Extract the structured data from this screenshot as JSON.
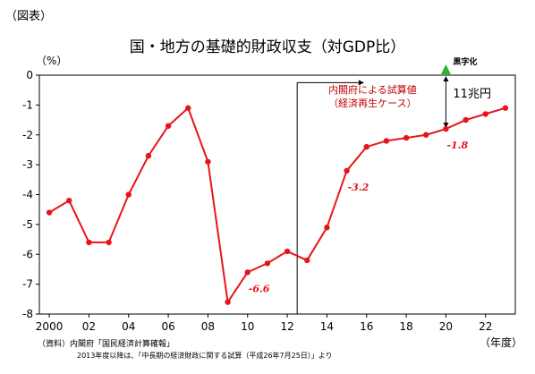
{
  "figure_tag": "（図表）",
  "source_line1": "（資料）内閣府「国民経済計算確報」",
  "source_line2": "2013年度以降は、「中長期の経済財政に関する試算（平成26年7月25日）」より",
  "chart_data": {
    "type": "line",
    "title": "国・地方の基礎的財政収支（対GDP比）",
    "ylabel": "（%）",
    "xlabel": "（年度）",
    "ylim": [
      -8,
      0
    ],
    "yticks": [
      0,
      -1,
      -2,
      -3,
      -4,
      -5,
      -6,
      -7,
      -8
    ],
    "xlim": [
      1999.5,
      2023.5
    ],
    "xticks": [
      {
        "x": 2000,
        "label": "2000"
      },
      {
        "x": 2002,
        "label": "02"
      },
      {
        "x": 2004,
        "label": "04"
      },
      {
        "x": 2006,
        "label": "06"
      },
      {
        "x": 2008,
        "label": "08"
      },
      {
        "x": 2010,
        "label": "10"
      },
      {
        "x": 2012,
        "label": "12"
      },
      {
        "x": 2014,
        "label": "14"
      },
      {
        "x": 2016,
        "label": "16"
      },
      {
        "x": 2018,
        "label": "18"
      },
      {
        "x": 2020,
        "label": "20"
      },
      {
        "x": 2022,
        "label": "22"
      }
    ],
    "grid": false,
    "color": "#e8141b",
    "series": [
      {
        "x": [
          2000,
          2001,
          2002,
          2003,
          2004,
          2005,
          2006,
          2007,
          2008,
          2009,
          2010,
          2011,
          2012,
          2013,
          2014,
          2015,
          2016,
          2017,
          2018,
          2019,
          2020,
          2021,
          2022,
          2023
        ],
        "values": [
          -4.6,
          -4.2,
          -5.6,
          -5.6,
          -4.0,
          -2.7,
          -1.7,
          -1.1,
          -2.9,
          -7.6,
          -6.6,
          -6.3,
          -5.9,
          -6.2,
          -5.1,
          -3.2,
          -2.4,
          -2.2,
          -2.1,
          -2.0,
          -1.8,
          -1.5,
          -1.3,
          -1.1
        ]
      }
    ],
    "data_labels": [
      {
        "x": 2010,
        "y": -6.6,
        "text": "-6.6"
      },
      {
        "x": 2015,
        "y": -3.2,
        "text": "-3.2"
      },
      {
        "x": 2020,
        "y": -1.8,
        "text": "-1.8"
      }
    ],
    "annotations": {
      "projection_start_x": 2012.5,
      "projection_label_line1": "内閣府による試算値",
      "projection_label_line2": "（経済再生ケース）",
      "target_label": "黒字化",
      "target_color": "#2eb135",
      "gap_label": "11兆円"
    }
  }
}
